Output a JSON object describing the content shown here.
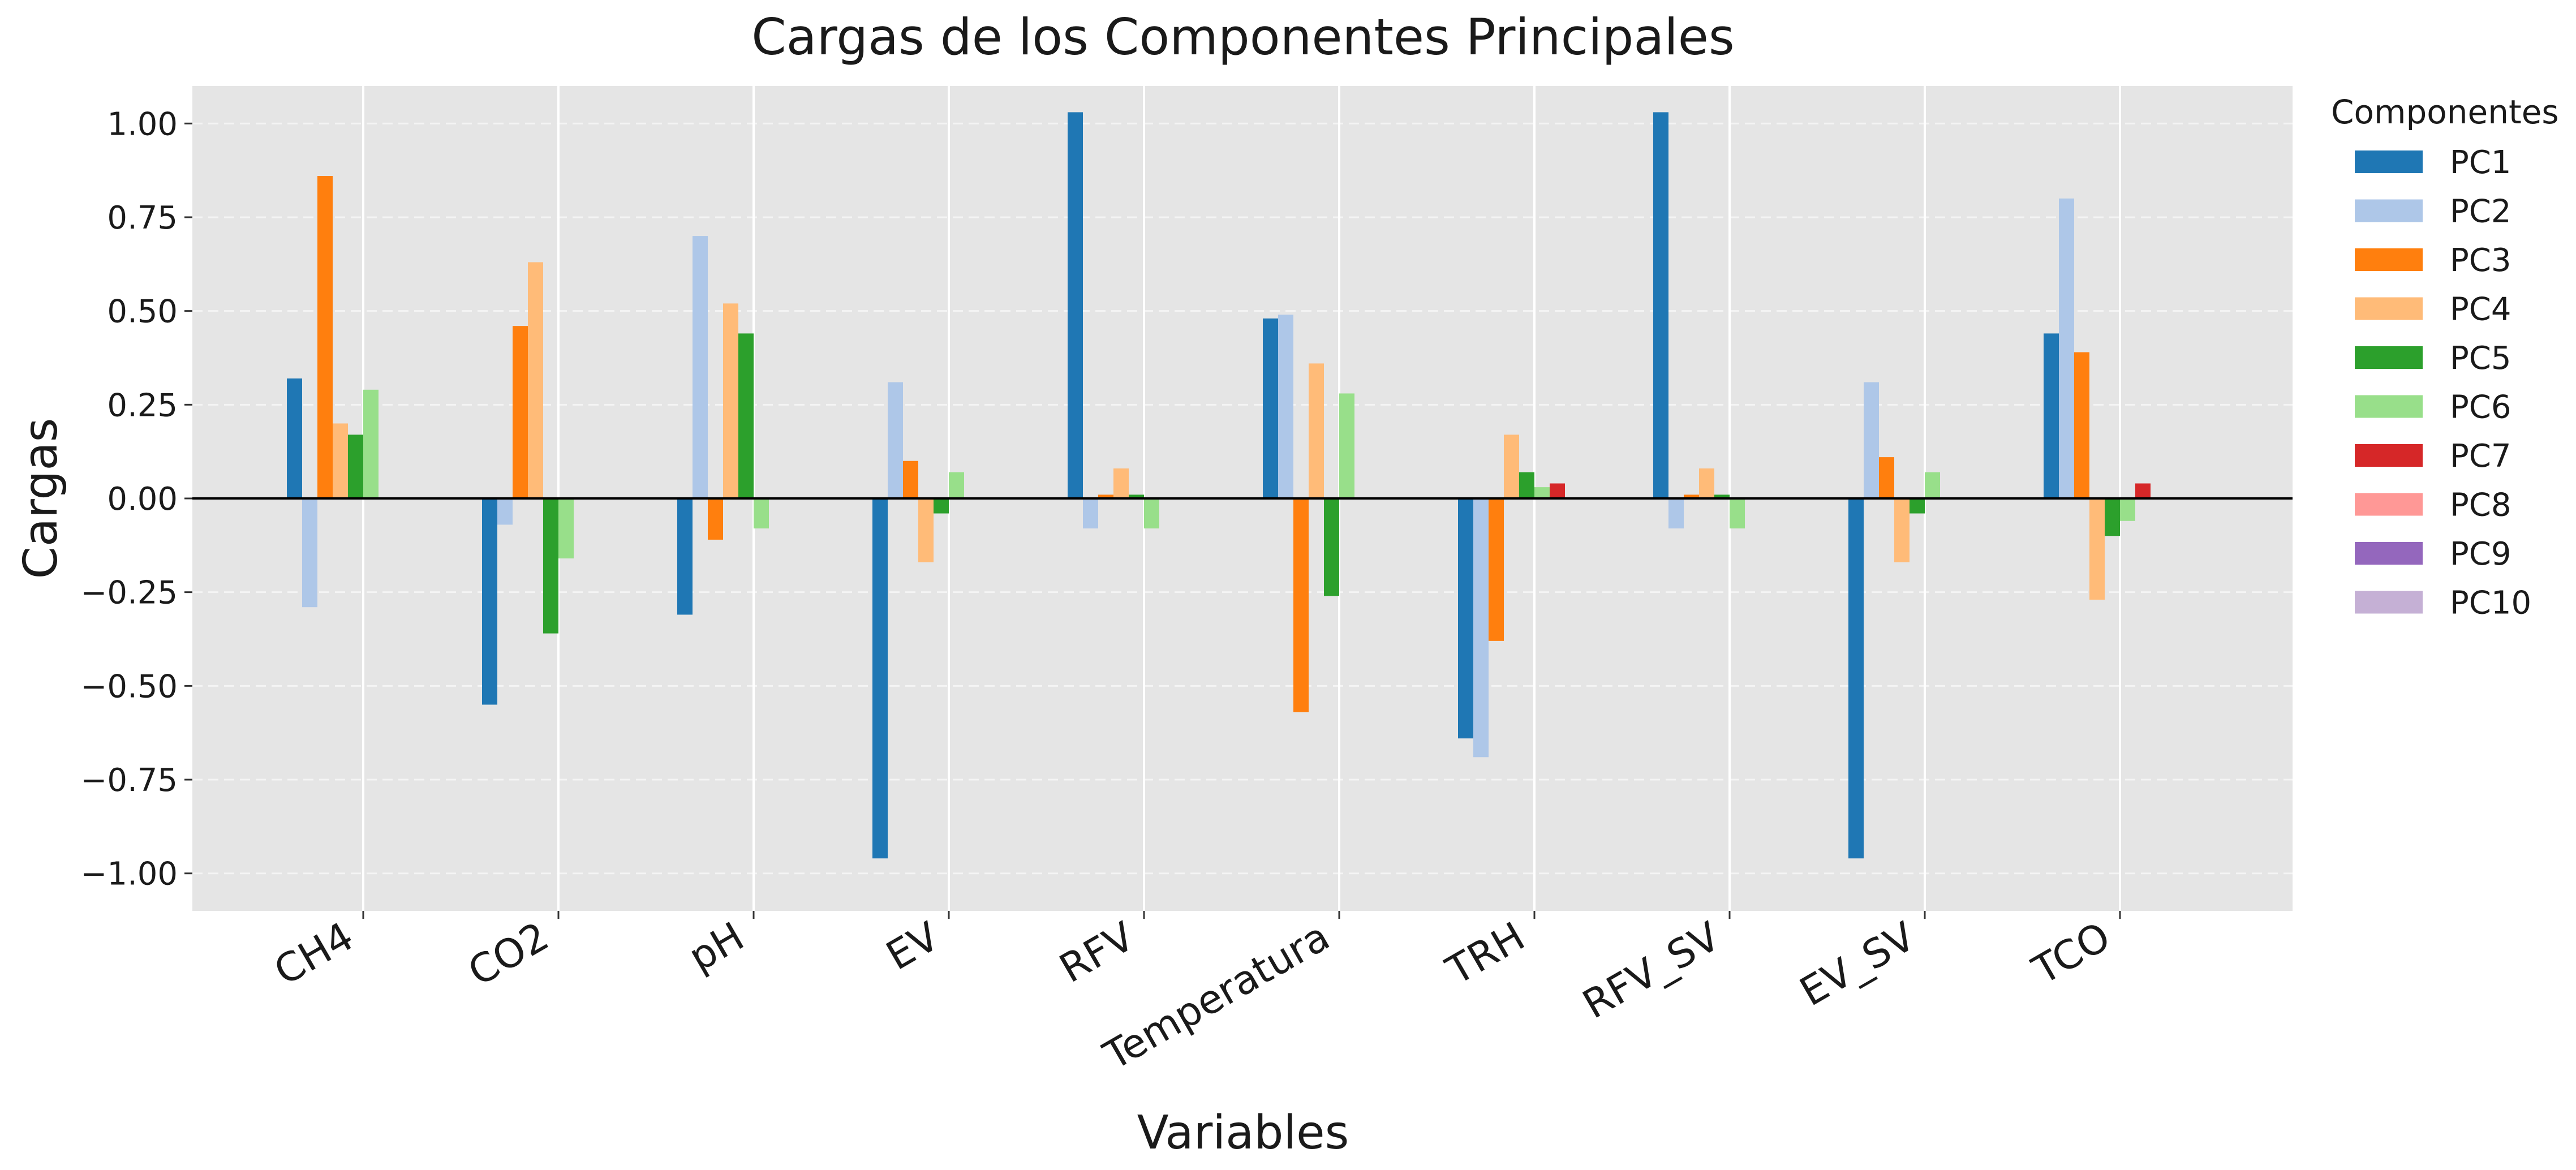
{
  "chart_data": {
    "type": "bar",
    "title": "Cargas de los Componentes Principales",
    "xlabel": "Variables",
    "ylabel": "Cargas",
    "ylim": [
      -1.1,
      1.1
    ],
    "yticks": [
      "−1.00",
      "−0.75",
      "−0.50",
      "−0.25",
      "0.00",
      "0.25",
      "0.50",
      "0.75",
      "1.00"
    ],
    "ytick_values": [
      -1.0,
      -0.75,
      -0.5,
      -0.25,
      0.0,
      0.25,
      0.5,
      0.75,
      1.0
    ],
    "categories": [
      "CH4",
      "CO2",
      "pH",
      "EV",
      "RFV",
      "Temperatura",
      "TRH",
      "RFV_SV",
      "EV_SV",
      "TCO"
    ],
    "legend_title": "Componentes",
    "legend_position": "outside-right",
    "grid": true,
    "series": [
      {
        "name": "PC1",
        "color": "#1f77b4",
        "values": [
          0.32,
          -0.55,
          -0.31,
          -0.96,
          1.03,
          0.48,
          -0.64,
          1.03,
          -0.96,
          0.44
        ]
      },
      {
        "name": "PC2",
        "color": "#aec7e8",
        "values": [
          -0.29,
          -0.07,
          0.7,
          0.31,
          -0.08,
          0.49,
          -0.69,
          -0.08,
          0.31,
          0.8
        ]
      },
      {
        "name": "PC3",
        "color": "#ff7f0e",
        "values": [
          0.86,
          0.46,
          -0.11,
          0.1,
          0.01,
          -0.57,
          -0.38,
          0.01,
          0.11,
          0.39
        ]
      },
      {
        "name": "PC4",
        "color": "#ffbb78",
        "values": [
          0.2,
          0.63,
          0.52,
          -0.17,
          0.08,
          0.36,
          0.17,
          0.08,
          -0.17,
          -0.27
        ]
      },
      {
        "name": "PC5",
        "color": "#2ca02c",
        "values": [
          0.17,
          -0.36,
          0.44,
          -0.04,
          0.01,
          -0.26,
          0.07,
          0.01,
          -0.04,
          -0.1
        ]
      },
      {
        "name": "PC6",
        "color": "#98df8a",
        "values": [
          0.29,
          -0.16,
          -0.08,
          0.07,
          -0.08,
          0.28,
          0.03,
          -0.08,
          0.07,
          -0.06
        ]
      },
      {
        "name": "PC7",
        "color": "#d62728",
        "values": [
          0.0,
          0.0,
          0.0,
          0.0,
          0.0,
          0.0,
          0.04,
          0.0,
          0.0,
          0.04
        ]
      },
      {
        "name": "PC8",
        "color": "#ff9896",
        "values": [
          0.0,
          0.0,
          0.0,
          0.0,
          0.0,
          0.0,
          0.0,
          0.0,
          0.0,
          0.0
        ]
      },
      {
        "name": "PC9",
        "color": "#9467bd",
        "values": [
          0.0,
          0.0,
          0.0,
          0.0,
          0.0,
          0.0,
          0.0,
          0.0,
          0.0,
          0.0
        ]
      },
      {
        "name": "PC10",
        "color": "#c5b0d5",
        "values": [
          0.0,
          0.0,
          0.0,
          0.0,
          0.0,
          0.0,
          0.0,
          0.0,
          0.0,
          0.0
        ]
      }
    ]
  }
}
